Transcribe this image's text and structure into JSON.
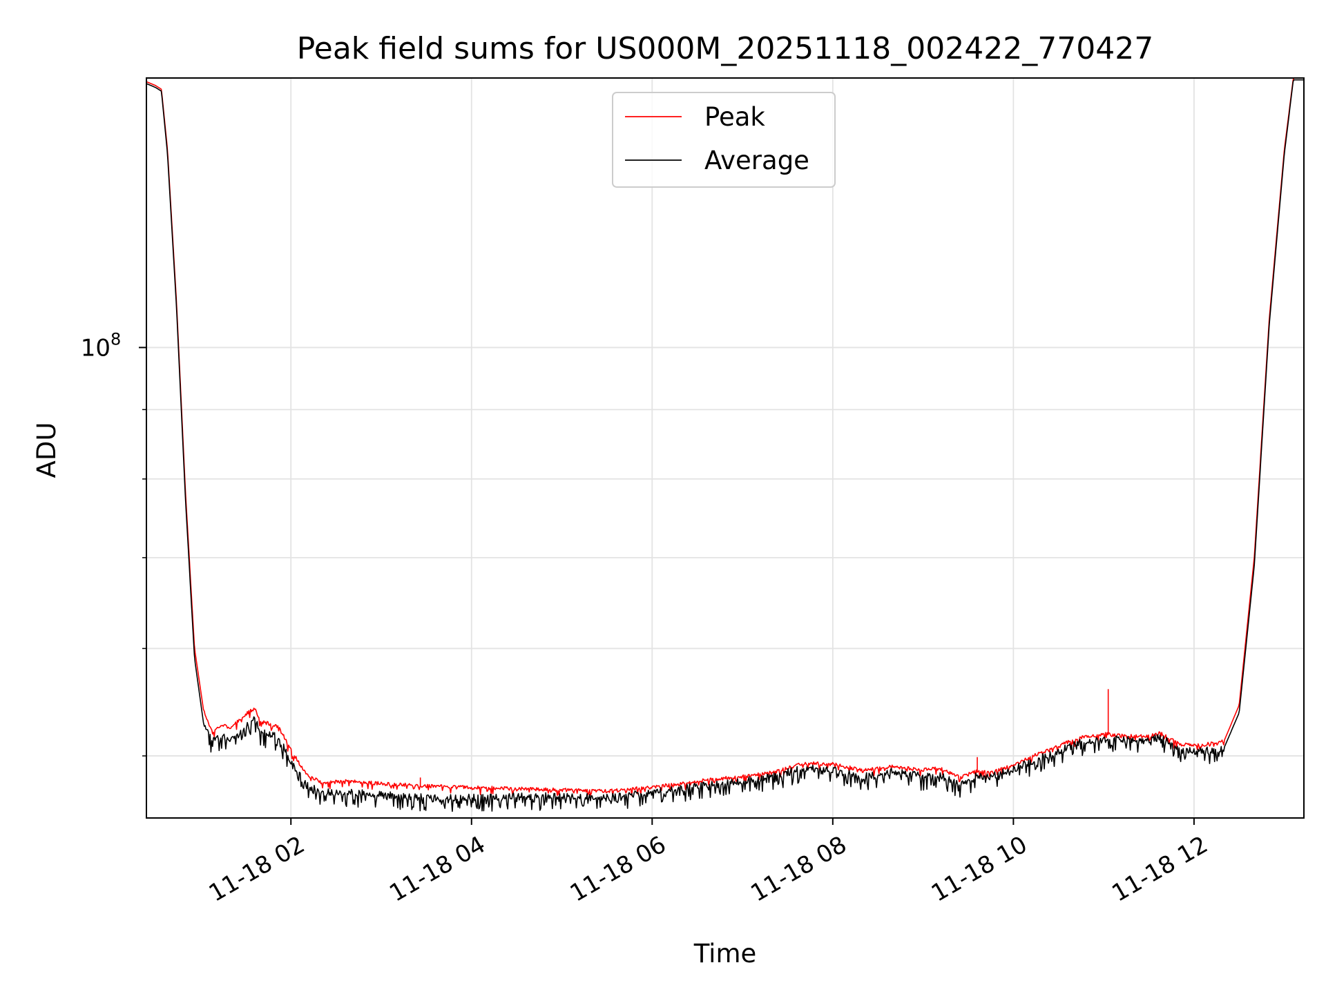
{
  "chart_data": {
    "type": "line",
    "title": "Peak field sums for US000M_20251118_002422_770427",
    "xlabel": "Time",
    "ylabel": "ADU",
    "yscale": "log",
    "xlim": [
      "11-18 00:24",
      "11-18 13:13"
    ],
    "ylim": [
      45000000,
      158000000
    ],
    "x_ticks": [
      "11-18 02",
      "11-18 04",
      "11-18 06",
      "11-18 08",
      "11-18 10",
      "11-18 12"
    ],
    "y_ticks": [
      {
        "value": 100000000,
        "base": "10",
        "exp": "8"
      }
    ],
    "grid": true,
    "legend": "upper center",
    "series": [
      {
        "name": "Peak",
        "color": "#ff0000",
        "x": [
          "11-18 00:24",
          "11-18 00:30",
          "11-18 00:34",
          "11-18 00:38",
          "11-18 00:44",
          "11-18 00:50",
          "11-18 00:56",
          "11-18 01:02",
          "11-18 01:08",
          "11-18 01:14",
          "11-18 01:20",
          "11-18 01:28",
          "11-18 01:36",
          "11-18 01:40",
          "11-18 01:46",
          "11-18 01:52",
          "11-18 02:00",
          "11-18 02:10",
          "11-18 02:20",
          "11-18 02:40",
          "11-18 03:00",
          "11-18 03:30",
          "11-18 04:00",
          "11-18 04:30",
          "11-18 05:00",
          "11-18 05:30",
          "11-18 06:00",
          "11-18 06:30",
          "11-18 07:00",
          "11-18 07:20",
          "11-18 07:40",
          "11-18 08:00",
          "11-18 08:20",
          "11-18 08:40",
          "11-18 09:00",
          "11-18 09:10",
          "11-18 09:25",
          "11-18 09:35",
          "11-18 09:45",
          "11-18 10:00",
          "11-18 10:15",
          "11-18 10:30",
          "11-18 10:45",
          "11-18 11:00",
          "11-18 11:15",
          "11-18 11:30",
          "11-18 11:38",
          "11-18 11:50",
          "11-18 12:05",
          "11-18 12:20",
          "11-18 12:30",
          "11-18 12:40",
          "11-18 12:50",
          "11-18 13:00",
          "11-18 13:06",
          "11-18 13:13"
        ],
        "y": [
          157000000,
          156000000,
          155000000,
          140000000,
          108000000,
          78000000,
          60000000,
          54000000,
          52000000,
          52800000,
          52400000,
          53500000,
          54200000,
          53000000,
          52800000,
          52500000,
          50500000,
          48500000,
          47800000,
          47900000,
          47700000,
          47500000,
          47400000,
          47300000,
          47200000,
          47100000,
          47400000,
          47900000,
          48300000,
          48600000,
          49400000,
          49300000,
          48800000,
          49100000,
          48800000,
          49000000,
          48200000,
          48700000,
          48600000,
          49200000,
          50100000,
          50900000,
          51600000,
          51900000,
          51700000,
          51700000,
          52000000,
          51000000,
          50900000,
          51300000,
          54500000,
          70000000,
          105000000,
          140000000,
          158000000,
          158000000
        ]
      },
      {
        "name": "Average",
        "color": "#000000",
        "x": [
          "11-18 00:24",
          "11-18 00:30",
          "11-18 00:34",
          "11-18 00:38",
          "11-18 00:44",
          "11-18 00:50",
          "11-18 00:56",
          "11-18 01:02",
          "11-18 01:08",
          "11-18 01:14",
          "11-18 01:20",
          "11-18 01:28",
          "11-18 01:36",
          "11-18 01:40",
          "11-18 01:46",
          "11-18 01:52",
          "11-18 02:00",
          "11-18 02:10",
          "11-18 02:20",
          "11-18 02:40",
          "11-18 03:00",
          "11-18 03:30",
          "11-18 04:00",
          "11-18 04:30",
          "11-18 05:00",
          "11-18 05:30",
          "11-18 06:00",
          "11-18 06:30",
          "11-18 07:00",
          "11-18 07:20",
          "11-18 07:40",
          "11-18 08:00",
          "11-18 08:20",
          "11-18 08:40",
          "11-18 09:00",
          "11-18 09:10",
          "11-18 09:25",
          "11-18 09:35",
          "11-18 09:45",
          "11-18 10:00",
          "11-18 10:15",
          "11-18 10:30",
          "11-18 10:45",
          "11-18 11:00",
          "11-18 11:15",
          "11-18 11:30",
          "11-18 11:38",
          "11-18 11:50",
          "11-18 12:05",
          "11-18 12:20",
          "11-18 12:30",
          "11-18 12:40",
          "11-18 12:50",
          "11-18 13:00",
          "11-18 13:06",
          "11-18 13:13"
        ],
        "y": [
          156500000,
          155500000,
          154500000,
          139000000,
          107000000,
          77000000,
          59000000,
          52800000,
          51200000,
          51800000,
          51500000,
          52300000,
          53200000,
          52000000,
          51900000,
          51600000,
          49600000,
          47700000,
          47000000,
          47000000,
          46800000,
          46600000,
          46600000,
          46700000,
          46700000,
          46600000,
          47000000,
          47500000,
          47900000,
          48300000,
          49000000,
          48800000,
          48300000,
          48700000,
          48300000,
          48400000,
          47700000,
          48300000,
          48300000,
          48900000,
          49700000,
          50400000,
          51200000,
          51500000,
          51400000,
          51300000,
          51700000,
          50500000,
          50400000,
          50700000,
          53800000,
          69000000,
          104000000,
          139000000,
          157500000,
          157500000
        ]
      }
    ],
    "annotations": [
      {
        "series": "Peak",
        "kind": "spike",
        "x": "11-18 11:03",
        "y": 56000000
      },
      {
        "series": "Peak",
        "kind": "spike",
        "x": "11-18 09:36",
        "y": 49900000
      },
      {
        "series": "Peak",
        "kind": "spike",
        "x": "11-18 03:26",
        "y": 48200000
      }
    ]
  }
}
